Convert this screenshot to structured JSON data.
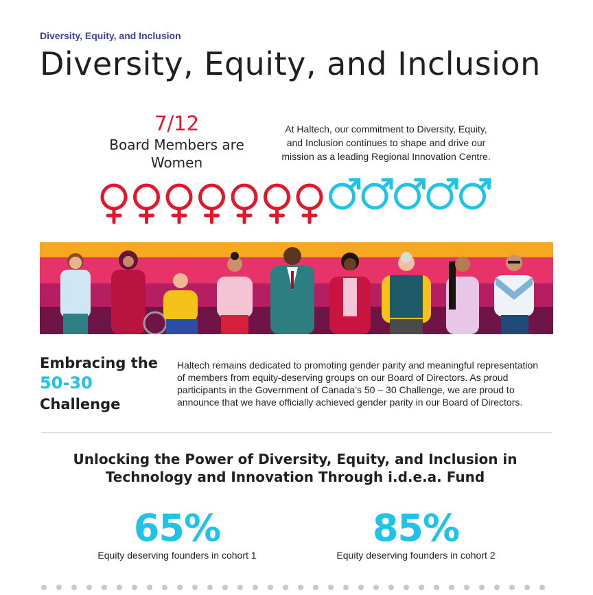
{
  "header": {
    "eyebrow": "Diversity, Equity, and Inclusion",
    "title": "Diversity, Equity, and Inclusion"
  },
  "board": {
    "ratio": "7/12",
    "caption_line1": "Board Members are",
    "caption_line2": "Women",
    "women": 7,
    "total": 12,
    "female_icon": "female-symbol-icon",
    "male_icon": "male-symbol-icon",
    "female_color": "#e3162a",
    "male_color": "#1fc3e8"
  },
  "intro": {
    "line1": "At Haltech, our commitment to Diversity, Equity,",
    "line2": "and Inclusion continues to shape and drive our",
    "line3": "mission as a leading Regional Innovation Centre."
  },
  "banner": {
    "stripe_colors": [
      "#f7a823",
      "#e8336a",
      "#b51f62",
      "#6e1447"
    ]
  },
  "challenge": {
    "title_line1": "Embracing the",
    "number": "50-30",
    "title_line3": "Challenge",
    "body_line1": "Haltech remains dedicated to promoting gender parity and meaningful representation",
    "body_line2": "of members from equity-deserving groups on our Board of Directors. As proud",
    "body_line3": "participants in the Government of Canada’s 50 – 30 Challenge, we are proud to",
    "body_line4": "announce that we have officially achieved gender parity in our Board of Directors."
  },
  "fund": {
    "heading_line1": "Unlocking the Power of Diversity, Equity, and Inclusion in",
    "heading_line2": "Technology and Innovation Through i.d.e.a. Fund",
    "stats": [
      {
        "value": "65%",
        "label": "Equity deserving founders in cohort 1"
      },
      {
        "value": "85%",
        "label": "Equity deserving founders in cohort 2"
      }
    ]
  },
  "colors": {
    "accent_blue": "#1fc3e8",
    "accent_red": "#e3162a",
    "eyebrow": "#3a3f9a"
  }
}
